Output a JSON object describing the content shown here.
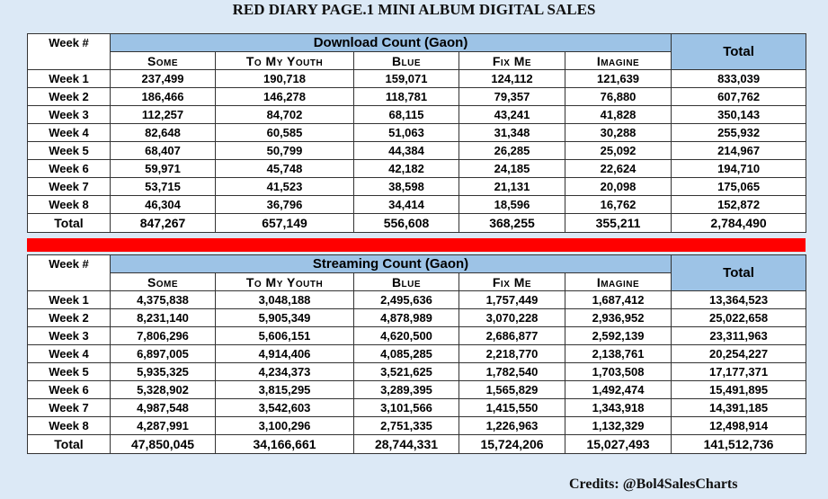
{
  "title": "RED DIARY PAGE.1 MINI ALBUM DIGITAL SALES",
  "download": {
    "week_label": "Week #",
    "section_label": "Download Count (Gaon)",
    "total_label": "Total",
    "songs": [
      "Some",
      "To My Youth",
      "Blue",
      "Fix Me",
      "Imagine"
    ],
    "rows": [
      {
        "week": "Week 1",
        "values": [
          "237,499",
          "190,718",
          "159,071",
          "124,112",
          "121,639"
        ],
        "total": "833,039"
      },
      {
        "week": "Week 2",
        "values": [
          "186,466",
          "146,278",
          "118,781",
          "79,357",
          "76,880"
        ],
        "total": "607,762"
      },
      {
        "week": "Week 3",
        "values": [
          "112,257",
          "84,702",
          "68,115",
          "43,241",
          "41,828"
        ],
        "total": "350,143"
      },
      {
        "week": "Week 4",
        "values": [
          "82,648",
          "60,585",
          "51,063",
          "31,348",
          "30,288"
        ],
        "total": "255,932"
      },
      {
        "week": "Week 5",
        "values": [
          "68,407",
          "50,799",
          "44,384",
          "26,285",
          "25,092"
        ],
        "total": "214,967"
      },
      {
        "week": "Week 6",
        "values": [
          "59,971",
          "45,748",
          "42,182",
          "24,185",
          "22,624"
        ],
        "total": "194,710"
      },
      {
        "week": "Week 7",
        "values": [
          "53,715",
          "41,523",
          "38,598",
          "21,131",
          "20,098"
        ],
        "total": "175,065"
      },
      {
        "week": "Week 8",
        "values": [
          "46,304",
          "36,796",
          "34,414",
          "18,596",
          "16,762"
        ],
        "total": "152,872"
      }
    ],
    "grand": {
      "label": "Total",
      "values": [
        "847,267",
        "657,149",
        "556,608",
        "368,255",
        "355,211"
      ],
      "total": "2,784,490"
    }
  },
  "streaming": {
    "week_label": "Week #",
    "section_label": "Streaming Count (Gaon)",
    "total_label": "Total",
    "songs": [
      "Some",
      "To My Youth",
      "Blue",
      "Fix Me",
      "Imagine"
    ],
    "rows": [
      {
        "week": "Week 1",
        "values": [
          "4,375,838",
          "3,048,188",
          "2,495,636",
          "1,757,449",
          "1,687,412"
        ],
        "total": "13,364,523"
      },
      {
        "week": "Week 2",
        "values": [
          "8,231,140",
          "5,905,349",
          "4,878,989",
          "3,070,228",
          "2,936,952"
        ],
        "total": "25,022,658"
      },
      {
        "week": "Week 3",
        "values": [
          "7,806,296",
          "5,606,151",
          "4,620,500",
          "2,686,877",
          "2,592,139"
        ],
        "total": "23,311,963"
      },
      {
        "week": "Week 4",
        "values": [
          "6,897,005",
          "4,914,406",
          "4,085,285",
          "2,218,770",
          "2,138,761"
        ],
        "total": "20,254,227"
      },
      {
        "week": "Week 5",
        "values": [
          "5,935,325",
          "4,234,373",
          "3,521,625",
          "1,782,540",
          "1,703,508"
        ],
        "total": "17,177,371"
      },
      {
        "week": "Week 6",
        "values": [
          "5,328,902",
          "3,815,295",
          "3,289,395",
          "1,565,829",
          "1,492,474"
        ],
        "total": "15,491,895"
      },
      {
        "week": "Week 7",
        "values": [
          "4,987,548",
          "3,542,603",
          "3,101,566",
          "1,415,550",
          "1,343,918"
        ],
        "total": "14,391,185"
      },
      {
        "week": "Week 8",
        "values": [
          "4,287,991",
          "3,100,296",
          "2,751,335",
          "1,226,963",
          "1,132,329"
        ],
        "total": "12,498,914"
      }
    ],
    "grand": {
      "label": "Total",
      "values": [
        "47,850,045",
        "34,166,661",
        "28,744,331",
        "15,724,206",
        "15,027,493"
      ],
      "total": "141,512,736"
    }
  },
  "credits": "Credits: @Bol4SalesCharts",
  "colors": {
    "background": "#dce9f6",
    "header_blue": "#9dc3e6",
    "divider_red": "#ff0000"
  }
}
